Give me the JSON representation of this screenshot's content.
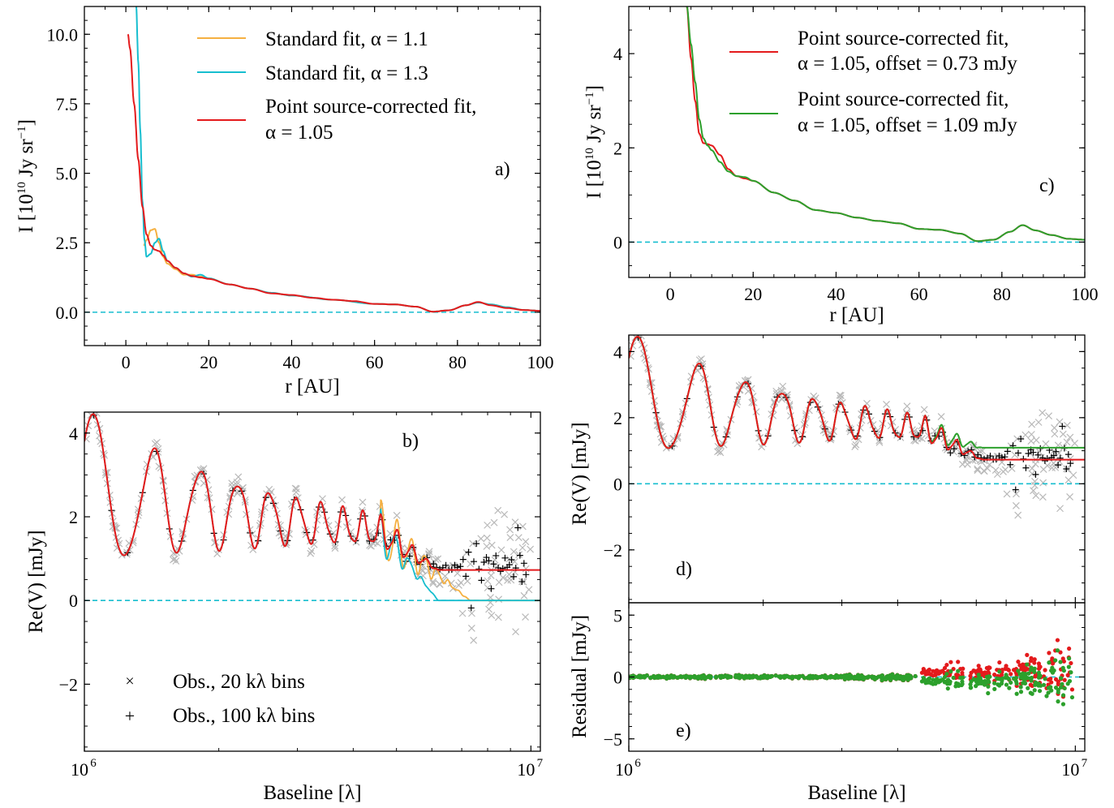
{
  "colors": {
    "orange": "#f5b041",
    "cyan": "#17becf",
    "red": "#e41a1c",
    "green": "#2ca02c",
    "gray": "#b9b9b9",
    "black": "#000000"
  },
  "panels": {
    "a": {
      "label": "a)",
      "xlabel": "r [AU]",
      "ylabel_main": "I [10",
      "ylabel_exp": "10",
      "ylabel_mid": " Jy sr",
      "ylabel_exp2": "−1",
      "ylabel_end": "]",
      "xticks": [
        "0",
        "20",
        "40",
        "60",
        "80",
        "100"
      ],
      "yticks": [
        "0.0",
        "2.5",
        "5.0",
        "7.5",
        "10.0"
      ],
      "legend": [
        {
          "text": "Standard fit, α =  1.1",
          "color": "#f5b041"
        },
        {
          "text": "Standard fit, α =  1.3",
          "color": "#17becf"
        },
        {
          "text": "Point source-corrected fit,",
          "text2": "α =  1.05",
          "color": "#e41a1c"
        }
      ]
    },
    "b": {
      "label": "b)",
      "xlabel": "",
      "ylabel": "Re(V) [mJy]",
      "xticks": [
        "10",
        "10"
      ],
      "xtick_exps": [
        "6",
        "7"
      ],
      "yticks": [
        "−2",
        "0",
        "2",
        "4"
      ],
      "legend": [
        {
          "marker": "×",
          "text": "Obs., 20 kλ bins",
          "color": "#b9b9b9"
        },
        {
          "marker": "+",
          "text": "Obs., 100 kλ bins",
          "color": "#000000"
        }
      ]
    },
    "c": {
      "label": "c)",
      "xlabel": "r [AU]",
      "ylabel_main": "I [10",
      "ylabel_exp": "10",
      "ylabel_mid": " Jy sr",
      "ylabel_exp2": "−1",
      "ylabel_end": "]",
      "xticks": [
        "0",
        "20",
        "40",
        "60",
        "80",
        "100"
      ],
      "yticks": [
        "0",
        "2",
        "4"
      ],
      "legend": [
        {
          "text": "Point source-corrected fit,",
          "text2": "α =  1.05, offset = 0.73 mJy",
          "color": "#e41a1c"
        },
        {
          "text": "Point source-corrected fit,",
          "text2": "α =  1.05, offset = 1.09 mJy",
          "color": "#2ca02c"
        }
      ]
    },
    "d": {
      "label": "d)",
      "ylabel": "Re(V) [mJy]",
      "yticks": [
        "−2",
        "0",
        "2",
        "4"
      ]
    },
    "e": {
      "label": "e)",
      "xlabel": "Baseline [λ]",
      "ylabel": "Residual [mJy]",
      "xticks": [
        "10",
        "10"
      ],
      "xtick_exps": [
        "6",
        "7"
      ],
      "yticks": [
        "−5",
        "0",
        "5"
      ]
    },
    "b_xlabel": "Baseline [λ]"
  },
  "chart_data": [
    {
      "panel": "a",
      "type": "line",
      "xlabel": "r [AU]",
      "ylabel": "I [10^10 Jy sr^-1]",
      "xlim": [
        -10,
        100
      ],
      "ylim": [
        -1.2,
        11
      ],
      "series": [
        {
          "name": "Standard fit, α = 1.1",
          "color": "#f5b041",
          "x": [
            4.3,
            5,
            6,
            7,
            8,
            9,
            10,
            12,
            14,
            16,
            18,
            20,
            25,
            30,
            35,
            40,
            50,
            60,
            65,
            70,
            74,
            78,
            82,
            85,
            88,
            92,
            96,
            100
          ],
          "y": [
            2.4,
            2.6,
            2.95,
            3.0,
            2.5,
            2.0,
            1.75,
            1.55,
            1.35,
            1.35,
            1.28,
            1.22,
            1.0,
            0.85,
            0.7,
            0.6,
            0.45,
            0.3,
            0.28,
            0.2,
            0.02,
            0.07,
            0.25,
            0.35,
            0.28,
            0.18,
            0.08,
            0.05
          ]
        },
        {
          "name": "Standard fit, α = 1.3",
          "color": "#17becf",
          "x": [
            2.5,
            3,
            3.5,
            4,
            4.5,
            5,
            6,
            7,
            8,
            9,
            10,
            12,
            14,
            16,
            18,
            20,
            25,
            30,
            35,
            40,
            50,
            60,
            65,
            70,
            74,
            78,
            82,
            85,
            88,
            92,
            96,
            100
          ],
          "y": [
            11,
            9.0,
            6.5,
            4.0,
            2.6,
            2.0,
            2.1,
            2.5,
            2.65,
            2.2,
            1.85,
            1.6,
            1.4,
            1.28,
            1.35,
            1.22,
            1.0,
            0.85,
            0.7,
            0.6,
            0.45,
            0.3,
            0.28,
            0.2,
            0.02,
            0.07,
            0.25,
            0.35,
            0.28,
            0.18,
            0.08,
            0.05
          ]
        },
        {
          "name": "Point source-corrected fit, α = 1.05",
          "color": "#e41a1c",
          "x": [
            0.5,
            1,
            2,
            3,
            4,
            5,
            6,
            7,
            8,
            9,
            10,
            12,
            14,
            16,
            18,
            20,
            25,
            30,
            35,
            40,
            45,
            50,
            55,
            60,
            65,
            70,
            74,
            78,
            82,
            85,
            88,
            92,
            96,
            100
          ],
          "y": [
            10,
            9.5,
            7.5,
            5.5,
            3.8,
            2.8,
            2.4,
            2.25,
            2.2,
            2.05,
            1.85,
            1.6,
            1.4,
            1.3,
            1.25,
            1.2,
            1.0,
            0.85,
            0.68,
            0.62,
            0.52,
            0.45,
            0.4,
            0.3,
            0.28,
            0.2,
            0.02,
            0.07,
            0.25,
            0.37,
            0.25,
            0.15,
            0.08,
            0.05
          ]
        }
      ]
    },
    {
      "panel": "b",
      "type": "line",
      "xscale": "log",
      "xlabel": "Baseline [λ]",
      "ylabel": "Re(V) [mJy]",
      "xlim": [
        1000000,
        10500000
      ],
      "ylim": [
        -3.6,
        4.5
      ],
      "series": [
        {
          "name": "Point source-corrected fit, α = 1.05",
          "color": "#e41a1c"
        },
        {
          "name": "Standard fit, α = 1.1",
          "color": "#f5b041"
        },
        {
          "name": "Standard fit, α = 1.3",
          "color": "#17becf"
        },
        {
          "name": "Obs., 20 kλ bins",
          "marker": "x",
          "color": "#b9b9b9"
        },
        {
          "name": "Obs., 100 kλ bins",
          "marker": "+",
          "color": "#000000"
        }
      ]
    },
    {
      "panel": "c",
      "type": "line",
      "xlabel": "r [AU]",
      "ylabel": "I [10^10 Jy sr^-1]",
      "xlim": [
        -10,
        100
      ],
      "ylim": [
        -0.75,
        5
      ],
      "series": [
        {
          "name": "Point source-corrected fit, α = 1.05, offset = 0.73 mJy",
          "color": "#e41a1c",
          "x": [
            4,
            5,
            6,
            7,
            8,
            9,
            10,
            12,
            14,
            16,
            18,
            20,
            25,
            30,
            35,
            40,
            45,
            50,
            55,
            60,
            65,
            70,
            74,
            78,
            82,
            85,
            88,
            92,
            96,
            100
          ],
          "y": [
            5,
            3.9,
            3.0,
            2.3,
            2.1,
            2.08,
            2.05,
            1.85,
            1.55,
            1.4,
            1.35,
            1.3,
            1.05,
            0.88,
            0.68,
            0.62,
            0.52,
            0.45,
            0.4,
            0.28,
            0.26,
            0.18,
            0.02,
            0.05,
            0.22,
            0.36,
            0.25,
            0.15,
            0.07,
            0.05
          ]
        },
        {
          "name": "Point source-corrected fit, α = 1.05, offset = 1.09 mJy",
          "color": "#2ca02c",
          "x": [
            4,
            5,
            6,
            7,
            8,
            9,
            10,
            12,
            14,
            16,
            18,
            20,
            25,
            30,
            35,
            40,
            45,
            50,
            55,
            60,
            65,
            70,
            74,
            78,
            82,
            85,
            88,
            92,
            96,
            100
          ],
          "y": [
            5,
            4.2,
            3.4,
            2.6,
            2.2,
            2.05,
            1.95,
            1.7,
            1.5,
            1.4,
            1.38,
            1.3,
            1.05,
            0.88,
            0.68,
            0.62,
            0.52,
            0.45,
            0.4,
            0.28,
            0.26,
            0.18,
            0.02,
            0.05,
            0.22,
            0.36,
            0.25,
            0.15,
            0.07,
            0.05
          ]
        }
      ]
    },
    {
      "panel": "d",
      "type": "line",
      "xscale": "log",
      "ylabel": "Re(V) [mJy]",
      "xlim": [
        1000000,
        10500000
      ],
      "ylim": [
        -3.6,
        4.5
      ],
      "series": [
        {
          "name": "offset = 0.73 mJy",
          "color": "#e41a1c",
          "asymptote": 0.73
        },
        {
          "name": "offset = 1.09 mJy",
          "color": "#2ca02c",
          "asymptote": 1.09
        }
      ]
    },
    {
      "panel": "e",
      "type": "scatter",
      "xscale": "log",
      "xlabel": "Baseline [λ]",
      "ylabel": "Residual [mJy]",
      "xlim": [
        1000000,
        10500000
      ],
      "ylim": [
        -6,
        6
      ],
      "series": [
        {
          "name": "offset = 0.73 mJy",
          "color": "#e41a1c"
        },
        {
          "name": "offset = 1.09 mJy",
          "color": "#2ca02c"
        }
      ]
    }
  ]
}
